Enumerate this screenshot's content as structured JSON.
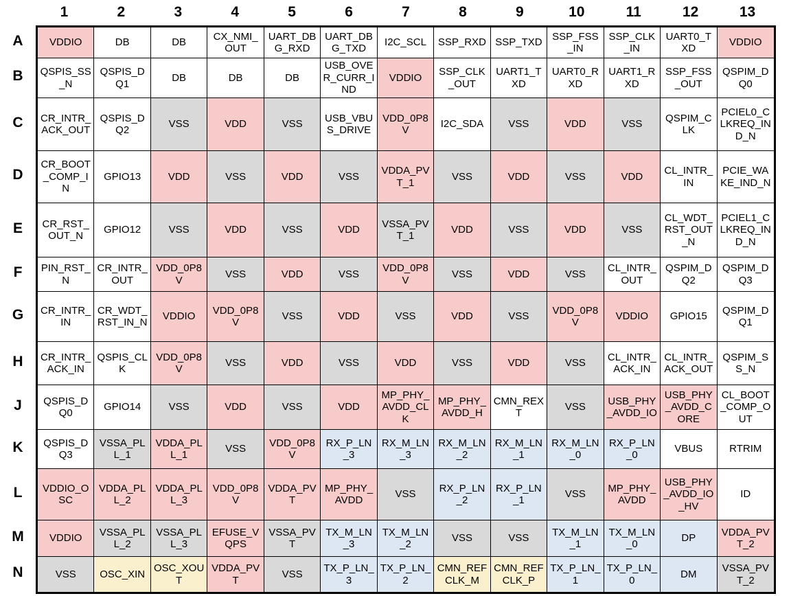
{
  "grid": {
    "color_key": {
      "power": "#F8CBCB",
      "ground": "#D9D9D9",
      "serdes": "#DCE7F3",
      "clock": "#FBF0CE",
      "signal": "#FFFFFF",
      "border": "#000000",
      "text": "#000000"
    },
    "column_headers": [
      "1",
      "2",
      "3",
      "4",
      "5",
      "6",
      "7",
      "8",
      "9",
      "10",
      "11",
      "12",
      "13"
    ],
    "rows": [
      {
        "row": "A",
        "pins": [
          {
            "name": "VDDIO",
            "type": "power"
          },
          {
            "name": "DB",
            "type": "signal"
          },
          {
            "name": "DB",
            "type": "signal"
          },
          {
            "name": "CX_NMI_OUT",
            "type": "signal"
          },
          {
            "name": "UART_DBG_RXD",
            "type": "signal"
          },
          {
            "name": "UART_DBG_TXD",
            "type": "signal"
          },
          {
            "name": "I2C_SCL",
            "type": "signal"
          },
          {
            "name": "SSP_RXD",
            "type": "signal"
          },
          {
            "name": "SSP_TXD",
            "type": "signal"
          },
          {
            "name": "SSP_FSS_IN",
            "type": "signal"
          },
          {
            "name": "SSP_CLK_IN",
            "type": "signal"
          },
          {
            "name": "UART0_TXD",
            "type": "signal"
          },
          {
            "name": "VDDIO",
            "type": "power"
          }
        ]
      },
      {
        "row": "B",
        "pins": [
          {
            "name": "QSPIS_SS_N",
            "type": "signal"
          },
          {
            "name": "QSPIS_DQ1",
            "type": "signal"
          },
          {
            "name": "DB",
            "type": "signal"
          },
          {
            "name": "DB",
            "type": "signal"
          },
          {
            "name": "DB",
            "type": "signal"
          },
          {
            "name": "USB_OVER_CURR_IND",
            "type": "signal"
          },
          {
            "name": "VDDIO",
            "type": "power"
          },
          {
            "name": "SSP_CLK_OUT",
            "type": "signal"
          },
          {
            "name": "UART1_TXD",
            "type": "signal"
          },
          {
            "name": "UART0_RXD",
            "type": "signal"
          },
          {
            "name": "UART1_RXD",
            "type": "signal"
          },
          {
            "name": "SSP_FSS_OUT",
            "type": "signal"
          },
          {
            "name": "QSPIM_DQ0",
            "type": "signal"
          }
        ]
      },
      {
        "row": "C",
        "pins": [
          {
            "name": "CR_INTR_ACK_OUT",
            "type": "signal"
          },
          {
            "name": "QSPIS_DQ2",
            "type": "signal"
          },
          {
            "name": "VSS",
            "type": "ground"
          },
          {
            "name": "VDD",
            "type": "power"
          },
          {
            "name": "VSS",
            "type": "ground"
          },
          {
            "name": "USB_VBUS_DRIVE",
            "type": "signal"
          },
          {
            "name": "VDD_0P8V",
            "type": "power"
          },
          {
            "name": "I2C_SDA",
            "type": "signal"
          },
          {
            "name": "VSS",
            "type": "ground"
          },
          {
            "name": "VDD",
            "type": "power"
          },
          {
            "name": "VSS",
            "type": "ground"
          },
          {
            "name": "QSPIM_CLK",
            "type": "signal"
          },
          {
            "name": "PCIEL0_CLKREQ_IND_N",
            "type": "signal"
          }
        ]
      },
      {
        "row": "D",
        "pins": [
          {
            "name": "CR_BOOT_COMP_IN",
            "type": "signal"
          },
          {
            "name": "GPIO13",
            "type": "signal"
          },
          {
            "name": "VDD",
            "type": "power"
          },
          {
            "name": "VSS",
            "type": "ground"
          },
          {
            "name": "VDD",
            "type": "power"
          },
          {
            "name": "VSS",
            "type": "ground"
          },
          {
            "name": "VDDA_PVT_1",
            "type": "power"
          },
          {
            "name": "VSS",
            "type": "ground"
          },
          {
            "name": "VDD",
            "type": "power"
          },
          {
            "name": "VSS",
            "type": "ground"
          },
          {
            "name": "VDD",
            "type": "power"
          },
          {
            "name": "CL_INTR_IN",
            "type": "signal"
          },
          {
            "name": "PCIE_WAKE_IND_N",
            "type": "signal"
          }
        ]
      },
      {
        "row": "E",
        "pins": [
          {
            "name": "CR_RST_OUT_N",
            "type": "signal"
          },
          {
            "name": "GPIO12",
            "type": "signal"
          },
          {
            "name": "VSS",
            "type": "ground"
          },
          {
            "name": "VDD",
            "type": "power"
          },
          {
            "name": "VSS",
            "type": "ground"
          },
          {
            "name": "VDD",
            "type": "power"
          },
          {
            "name": "VSSA_PVT_1",
            "type": "ground"
          },
          {
            "name": "VDD",
            "type": "power"
          },
          {
            "name": "VSS",
            "type": "ground"
          },
          {
            "name": "VDD",
            "type": "power"
          },
          {
            "name": "VSS",
            "type": "ground"
          },
          {
            "name": "CL_WDT_RST_OUT_N",
            "type": "signal"
          },
          {
            "name": "PCIEL1_CLKREQ_IND_N",
            "type": "signal"
          }
        ]
      },
      {
        "row": "F",
        "pins": [
          {
            "name": "PIN_RST_N",
            "type": "signal"
          },
          {
            "name": "CR_INTR_OUT",
            "type": "signal"
          },
          {
            "name": "VDD_0P8V",
            "type": "power"
          },
          {
            "name": "VSS",
            "type": "ground"
          },
          {
            "name": "VDD",
            "type": "power"
          },
          {
            "name": "VSS",
            "type": "ground"
          },
          {
            "name": "VDD_0P8V",
            "type": "power"
          },
          {
            "name": "VSS",
            "type": "ground"
          },
          {
            "name": "VDD",
            "type": "power"
          },
          {
            "name": "VSS",
            "type": "ground"
          },
          {
            "name": "CL_INTR_OUT",
            "type": "signal"
          },
          {
            "name": "QSPIM_DQ2",
            "type": "signal"
          },
          {
            "name": "QSPIM_DQ3",
            "type": "signal"
          }
        ]
      },
      {
        "row": "G",
        "pins": [
          {
            "name": "CR_INTR_IN",
            "type": "signal"
          },
          {
            "name": "CR_WDT_RST_IN_N",
            "type": "signal"
          },
          {
            "name": "VDDIO",
            "type": "power"
          },
          {
            "name": "VDD_0P8V",
            "type": "power"
          },
          {
            "name": "VSS",
            "type": "ground"
          },
          {
            "name": "VDD",
            "type": "power"
          },
          {
            "name": "VSS",
            "type": "ground"
          },
          {
            "name": "VDD",
            "type": "power"
          },
          {
            "name": "VSS",
            "type": "ground"
          },
          {
            "name": "VDD_0P8V",
            "type": "power"
          },
          {
            "name": "VDDIO",
            "type": "power"
          },
          {
            "name": "GPIO15",
            "type": "signal"
          },
          {
            "name": "QSPIM_DQ1",
            "type": "signal"
          }
        ]
      },
      {
        "row": "H",
        "pins": [
          {
            "name": "CR_INTR_ACK_IN",
            "type": "signal"
          },
          {
            "name": "QSPIS_CLK",
            "type": "signal"
          },
          {
            "name": "VDD_0P8V",
            "type": "power"
          },
          {
            "name": "VSS",
            "type": "ground"
          },
          {
            "name": "VDD",
            "type": "power"
          },
          {
            "name": "VSS",
            "type": "ground"
          },
          {
            "name": "VDD",
            "type": "power"
          },
          {
            "name": "VSS",
            "type": "ground"
          },
          {
            "name": "VDD",
            "type": "power"
          },
          {
            "name": "VSS",
            "type": "ground"
          },
          {
            "name": "CL_INTR_ACK_IN",
            "type": "signal"
          },
          {
            "name": "CL_INTR_ACK_OUT",
            "type": "signal"
          },
          {
            "name": "QSPIM_SS_N",
            "type": "signal"
          }
        ]
      },
      {
        "row": "J",
        "pins": [
          {
            "name": "QSPIS_DQ0",
            "type": "signal"
          },
          {
            "name": "GPIO14",
            "type": "signal"
          },
          {
            "name": "VSS",
            "type": "ground"
          },
          {
            "name": "VDD",
            "type": "power"
          },
          {
            "name": "VSS",
            "type": "ground"
          },
          {
            "name": "VDD",
            "type": "power"
          },
          {
            "name": "MP_PHY_AVDD_CLK",
            "type": "power"
          },
          {
            "name": "MP_PHY_AVDD_H",
            "type": "power"
          },
          {
            "name": "CMN_REXT",
            "type": "signal"
          },
          {
            "name": "VSS",
            "type": "ground"
          },
          {
            "name": "USB_PHY_AVDD_IO",
            "type": "power"
          },
          {
            "name": "USB_PHY_AVDD_CORE",
            "type": "power"
          },
          {
            "name": "CL_BOOT_COMP_OUT",
            "type": "signal"
          }
        ]
      },
      {
        "row": "K",
        "pins": [
          {
            "name": "QSPIS_DQ3",
            "type": "signal"
          },
          {
            "name": "VSSA_PLL_1",
            "type": "ground"
          },
          {
            "name": "VDDA_PLL_1",
            "type": "power"
          },
          {
            "name": "VSS",
            "type": "ground"
          },
          {
            "name": "VDD_0P8V",
            "type": "power"
          },
          {
            "name": "RX_P_LN_3",
            "type": "serdes"
          },
          {
            "name": "RX_M_LN_3",
            "type": "serdes"
          },
          {
            "name": "RX_M_LN_2",
            "type": "serdes"
          },
          {
            "name": "RX_M_LN_1",
            "type": "serdes"
          },
          {
            "name": "RX_M_LN_0",
            "type": "serdes"
          },
          {
            "name": "RX_P_LN_0",
            "type": "serdes"
          },
          {
            "name": "VBUS",
            "type": "signal"
          },
          {
            "name": "RTRIM",
            "type": "signal"
          }
        ]
      },
      {
        "row": "L",
        "pins": [
          {
            "name": "VDDIO_OSC",
            "type": "power"
          },
          {
            "name": "VDDA_PLL_2",
            "type": "power"
          },
          {
            "name": "VDDA_PLL_3",
            "type": "power"
          },
          {
            "name": "VDD_0P8V",
            "type": "power"
          },
          {
            "name": "VDDA_PVT",
            "type": "power"
          },
          {
            "name": "MP_PHY_AVDD",
            "type": "power"
          },
          {
            "name": "VSS",
            "type": "ground"
          },
          {
            "name": "RX_P_LN_2",
            "type": "serdes"
          },
          {
            "name": "RX_P_LN_1",
            "type": "serdes"
          },
          {
            "name": "VSS",
            "type": "ground"
          },
          {
            "name": "MP_PHY_AVDD",
            "type": "power"
          },
          {
            "name": "USB_PHY_AVDD_IO_HV",
            "type": "power"
          },
          {
            "name": "ID",
            "type": "signal"
          }
        ]
      },
      {
        "row": "M",
        "pins": [
          {
            "name": "VDDIO",
            "type": "power"
          },
          {
            "name": "VSSA_PLL_2",
            "type": "ground"
          },
          {
            "name": "VSSA_PLL_3",
            "type": "ground"
          },
          {
            "name": "EFUSE_VQPS",
            "type": "power"
          },
          {
            "name": "VSSA_PVT",
            "type": "ground"
          },
          {
            "name": "TX_M_LN_3",
            "type": "serdes"
          },
          {
            "name": "TX_M_LN_2",
            "type": "serdes"
          },
          {
            "name": "VSS",
            "type": "ground"
          },
          {
            "name": "VSS",
            "type": "ground"
          },
          {
            "name": "TX_M_LN_1",
            "type": "serdes"
          },
          {
            "name": "TX_M_LN_0",
            "type": "serdes"
          },
          {
            "name": "DP",
            "type": "serdes"
          },
          {
            "name": "VDDA_PVT_2",
            "type": "power"
          }
        ]
      },
      {
        "row": "N",
        "pins": [
          {
            "name": "VSS",
            "type": "ground"
          },
          {
            "name": "OSC_XIN",
            "type": "clock"
          },
          {
            "name": "OSC_XOUT",
            "type": "clock"
          },
          {
            "name": "VDDA_PVT",
            "type": "power"
          },
          {
            "name": "VSS",
            "type": "ground"
          },
          {
            "name": "TX_P_LN_3",
            "type": "serdes"
          },
          {
            "name": "TX_P_LN_2",
            "type": "serdes"
          },
          {
            "name": "CMN_REFCLK_M",
            "type": "clock"
          },
          {
            "name": "CMN_REFCLK_P",
            "type": "clock"
          },
          {
            "name": "TX_P_LN_1",
            "type": "serdes"
          },
          {
            "name": "TX_P_LN_0",
            "type": "serdes"
          },
          {
            "name": "DM",
            "type": "serdes"
          },
          {
            "name": "VSSA_PVT_2",
            "type": "ground"
          }
        ]
      }
    ]
  }
}
